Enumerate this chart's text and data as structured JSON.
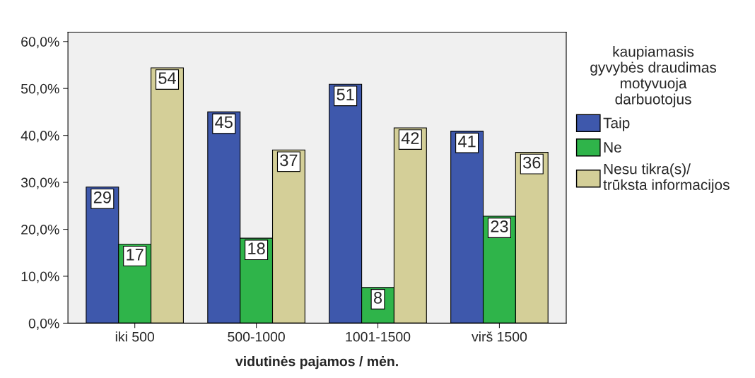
{
  "chart_data": {
    "type": "bar",
    "xlabel": "vidutinės pajamos / mėn.",
    "legend_title": "kaupiamasis\ngyvybės draudimas\nmotyvuoja\ndarbuotojus",
    "categories": [
      "iki 500",
      "500-1000",
      "1001-1500",
      "virš 1500"
    ],
    "series": [
      {
        "name": "Taip",
        "color": "#3e58ac",
        "values": [
          29.0,
          45.0,
          50.9,
          40.9
        ],
        "value_labels": [
          "29",
          "45",
          "51",
          "41"
        ]
      },
      {
        "name": "Ne",
        "color": "#2fb44a",
        "values": [
          16.8,
          18.1,
          7.6,
          22.8
        ],
        "value_labels": [
          "17",
          "18",
          "8",
          "23"
        ]
      },
      {
        "name": "Nesu tikra(s)/\ntrūksta informacijos",
        "color": "#d4cf98",
        "values": [
          54.4,
          36.9,
          41.6,
          36.4
        ],
        "value_labels": [
          "54",
          "37",
          "42",
          "36"
        ]
      }
    ],
    "ylim": [
      0,
      62
    ],
    "yticks": [
      {
        "value": 0,
        "label": "0,0%"
      },
      {
        "value": 10,
        "label": "10,0%"
      },
      {
        "value": 20,
        "label": "20,0%"
      },
      {
        "value": 30,
        "label": "30,0%"
      },
      {
        "value": 40,
        "label": "40,0%"
      },
      {
        "value": 50,
        "label": "50,0%"
      },
      {
        "value": 60,
        "label": "60,0%"
      }
    ],
    "grid": false,
    "legend": "right"
  }
}
